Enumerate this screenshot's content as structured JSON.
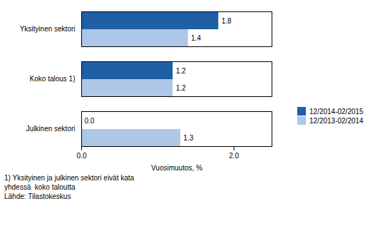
{
  "chart_data": {
    "type": "bar",
    "orientation": "horizontal",
    "categories": [
      "Julkinen sektori",
      "Koko talous 1)",
      "Yksityinen sektori"
    ],
    "series": [
      {
        "name": "12/2014-02/2015",
        "color": "#1f5fa6",
        "values": [
          0.0,
          1.2,
          1.8
        ],
        "value_labels": [
          "0.0",
          "1.2",
          "1.8"
        ]
      },
      {
        "name": "12/2013-02/2014",
        "color": "#aec6e8",
        "values": [
          1.3,
          1.2,
          1.4
        ],
        "value_labels": [
          "1.3",
          "1.2",
          "1.4"
        ]
      }
    ],
    "x_label": "Vuosimuutos, %",
    "xlim": [
      0,
      2.5
    ],
    "xticks": [
      0,
      2
    ],
    "grid": false,
    "data_labels": true,
    "legend": "right",
    "annotations": [
      "1) Yksityinen ja julkinen sektori eivät kata",
      "yhdessä  koko taloutta",
      "Lähde: Tilastokeskus"
    ]
  }
}
